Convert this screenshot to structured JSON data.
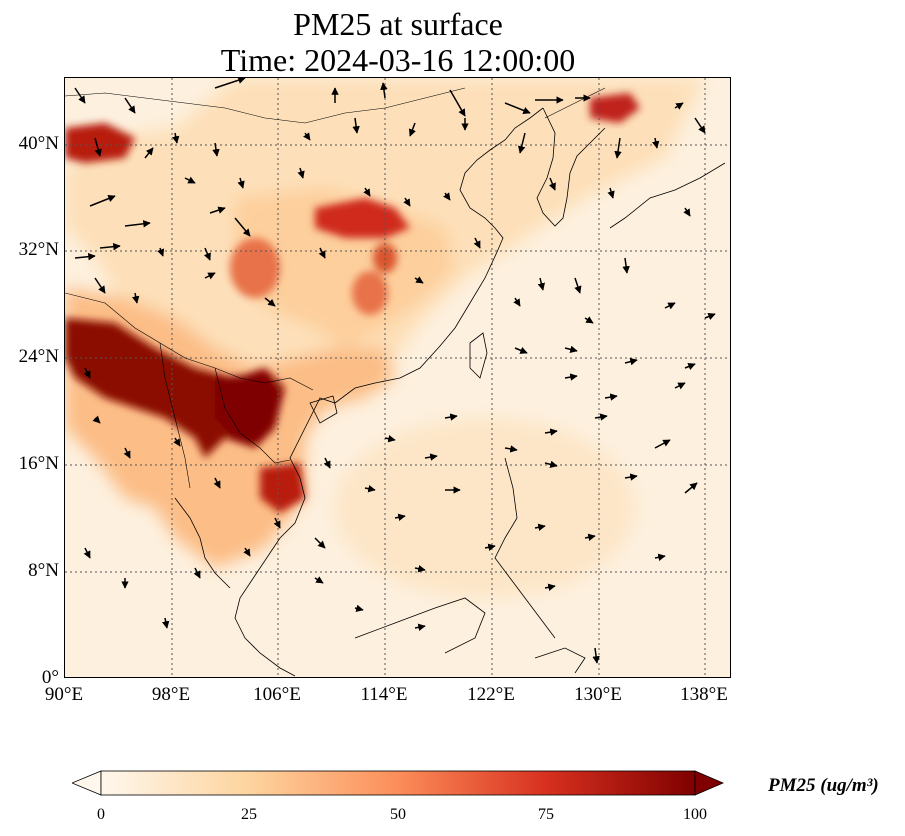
{
  "title": {
    "line1": "PM25 at surface",
    "line2": "Time: 2024-03-16 12:00:00"
  },
  "map": {
    "projection": "PlateCarree",
    "extent": {
      "lon": [
        90,
        140
      ],
      "lat": [
        0,
        45
      ]
    },
    "gridlines": "dotted gray",
    "coastlines": true,
    "borders": true,
    "variable": "PM25",
    "overlay": "wind vectors (black arrows)"
  },
  "axes": {
    "lat_ticks": [
      "0°",
      "8°N",
      "16°N",
      "24°N",
      "32°N",
      "40°N"
    ],
    "lon_ticks": [
      "90°E",
      "98°E",
      "106°E",
      "114°E",
      "122°E",
      "130°E",
      "138°E"
    ]
  },
  "colorbar": {
    "label": "PM25 (ug/m³)",
    "ticks": [
      "0",
      "25",
      "50",
      "75",
      "100"
    ],
    "range": [
      0,
      100
    ],
    "colormap": "OrRd",
    "extend": "both",
    "colors": [
      "#fff7ec",
      "#fdd49e",
      "#fc8d59",
      "#d7301f",
      "#7f0000"
    ]
  }
}
